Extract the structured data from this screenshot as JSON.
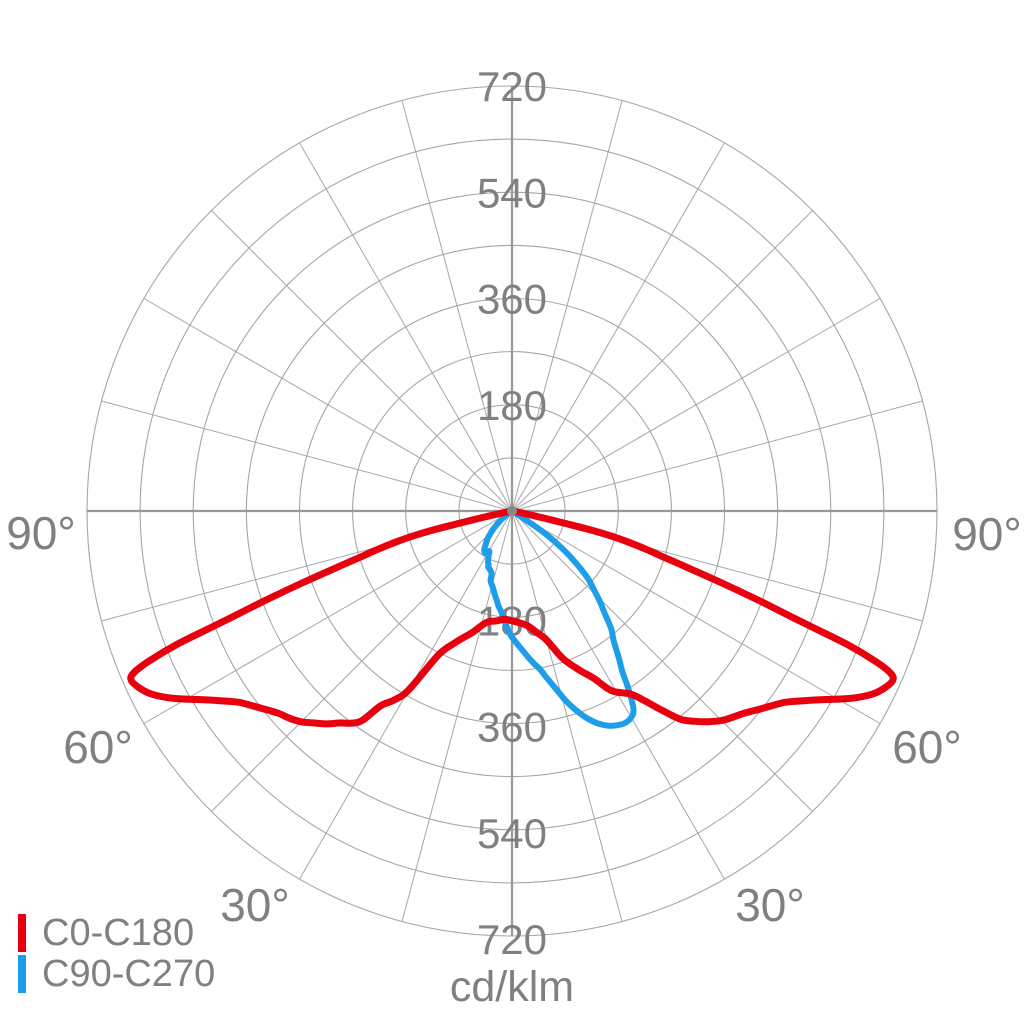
{
  "chart_data": {
    "type": "polar",
    "subtype": "luminous-intensity-distribution",
    "unit": "cd/klm",
    "radial_axis": {
      "ticks": [
        180,
        360,
        540,
        720
      ],
      "minor_step": 90,
      "max": 720
    },
    "angular_grid_step_deg": 15,
    "angle_labels": [
      {
        "text": "90°",
        "position": "left"
      },
      {
        "text": "90°",
        "position": "right"
      },
      {
        "text": "60°",
        "position": "lower-left"
      },
      {
        "text": "60°",
        "position": "lower-right"
      },
      {
        "text": "30°",
        "position": "bottom-left"
      },
      {
        "text": "30°",
        "position": "bottom-right"
      }
    ],
    "series": [
      {
        "name": "C90-C270",
        "color": "#1e9de9",
        "stroke_width": 6,
        "points_deg_cd": [
          [
            -56,
            8
          ],
          [
            -51,
            25
          ],
          [
            -46,
            44
          ],
          [
            -42,
            60
          ],
          [
            -38,
            73
          ],
          [
            -35,
            82
          ],
          [
            -32,
            84
          ],
          [
            -29.5,
            78
          ],
          [
            -27.5,
            86
          ],
          [
            -25,
            96
          ],
          [
            -23.5,
            99
          ],
          [
            -23,
            103
          ],
          [
            -20,
            107
          ],
          [
            -18,
            112
          ],
          [
            -17,
            124
          ],
          [
            -14.5,
            132
          ],
          [
            -12,
            143
          ],
          [
            -10,
            152
          ],
          [
            -8,
            163
          ],
          [
            -6,
            172
          ],
          [
            -4.5,
            183
          ],
          [
            -3,
            193
          ],
          [
            -1.5,
            204
          ],
          [
            0,
            214
          ],
          [
            2,
            224
          ],
          [
            4,
            235
          ],
          [
            6,
            247
          ],
          [
            8,
            260
          ],
          [
            10,
            272
          ],
          [
            12,
            291
          ],
          [
            14,
            312
          ],
          [
            16,
            336
          ],
          [
            18,
            356
          ],
          [
            20,
            374
          ],
          [
            22,
            388
          ],
          [
            24,
            398
          ],
          [
            26,
            404
          ],
          [
            28,
            407
          ],
          [
            30,
            404
          ],
          [
            31.5,
            394
          ],
          [
            33,
            365
          ],
          [
            34.5,
            330
          ],
          [
            36,
            308
          ],
          [
            38,
            280
          ],
          [
            40,
            262
          ],
          [
            42,
            236
          ],
          [
            44,
            215
          ],
          [
            46,
            194
          ],
          [
            48,
            176
          ],
          [
            49.5,
            158
          ],
          [
            51,
            138
          ],
          [
            52.5,
            118
          ],
          [
            54,
            96
          ],
          [
            55.5,
            72
          ],
          [
            56.5,
            48
          ],
          [
            57.2,
            25
          ],
          [
            57.6,
            8
          ]
        ]
      },
      {
        "name": "C0-C180",
        "color": "#e8000f",
        "stroke_width": 7,
        "points_deg_cd": [
          [
            -89,
            1
          ],
          [
            -86,
            2
          ],
          [
            -83,
            4
          ],
          [
            -80,
            8
          ],
          [
            -78.5,
            18
          ],
          [
            -77.7,
            40
          ],
          [
            -77.2,
            70
          ],
          [
            -76.8,
            105
          ],
          [
            -76.4,
            140
          ],
          [
            -75.8,
            175
          ],
          [
            -75,
            205
          ],
          [
            -74,
            238
          ],
          [
            -73,
            272
          ],
          [
            -72,
            320
          ],
          [
            -71,
            380
          ],
          [
            -70,
            450
          ],
          [
            -69,
            530
          ],
          [
            -68.3,
            610
          ],
          [
            -67.5,
            668
          ],
          [
            -66.8,
            698
          ],
          [
            -66,
            706
          ],
          [
            -64.5,
            698
          ],
          [
            -63,
            684
          ],
          [
            -61,
            655
          ],
          [
            -59,
            620
          ],
          [
            -57,
            590
          ],
          [
            -55,
            565
          ],
          [
            -53,
            549
          ],
          [
            -51,
            535
          ],
          [
            -49,
            523
          ],
          [
            -47,
            515
          ],
          [
            -45,
            505
          ],
          [
            -43,
            491
          ],
          [
            -41,
            478
          ],
          [
            -39,
            462
          ],
          [
            -37,
            450
          ],
          [
            -35.5,
            435
          ],
          [
            -34,
            398
          ],
          [
            -32,
            378
          ],
          [
            -30,
            350
          ],
          [
            -27,
            273
          ],
          [
            -23,
            241
          ],
          [
            -18,
            216
          ],
          [
            -13,
            194
          ],
          [
            -8,
            188
          ],
          [
            -4,
            184
          ],
          [
            0,
            186
          ],
          [
            4,
            190
          ],
          [
            8,
            197
          ],
          [
            12,
            212
          ],
          [
            15,
            226
          ],
          [
            19,
            264
          ],
          [
            23,
            293
          ],
          [
            26,
            315
          ],
          [
            29,
            348
          ],
          [
            33,
            370
          ],
          [
            35,
            393
          ],
          [
            37,
            423
          ],
          [
            39,
            454
          ],
          [
            41,
            472
          ],
          [
            43,
            488
          ],
          [
            45,
            502
          ],
          [
            47,
            512
          ],
          [
            49,
            522
          ],
          [
            51,
            535
          ],
          [
            53,
            549
          ],
          [
            55,
            565
          ],
          [
            57,
            590
          ],
          [
            59,
            620
          ],
          [
            61,
            655
          ],
          [
            63,
            684
          ],
          [
            64.5,
            698
          ],
          [
            66,
            706
          ],
          [
            66.8,
            698
          ],
          [
            67.5,
            668
          ],
          [
            68.3,
            610
          ],
          [
            69,
            530
          ],
          [
            70,
            450
          ],
          [
            71,
            380
          ],
          [
            72,
            320
          ],
          [
            73,
            272
          ],
          [
            74,
            238
          ],
          [
            75,
            205
          ],
          [
            75.8,
            175
          ],
          [
            76.4,
            140
          ],
          [
            76.8,
            105
          ],
          [
            77.2,
            70
          ],
          [
            77.7,
            40
          ],
          [
            78.5,
            18
          ],
          [
            80,
            8
          ],
          [
            83,
            4
          ],
          [
            86,
            2
          ],
          [
            89,
            1
          ]
        ]
      }
    ],
    "colors": {
      "grid": "#a6a6a6",
      "axis": "#999999",
      "labels": "#808080",
      "center_dot": "#8a8a8a"
    }
  },
  "legend": {
    "items": [
      {
        "label": "C0-C180",
        "color": "#e8000f"
      },
      {
        "label": "C90-C270",
        "color": "#1e9de9"
      }
    ]
  }
}
